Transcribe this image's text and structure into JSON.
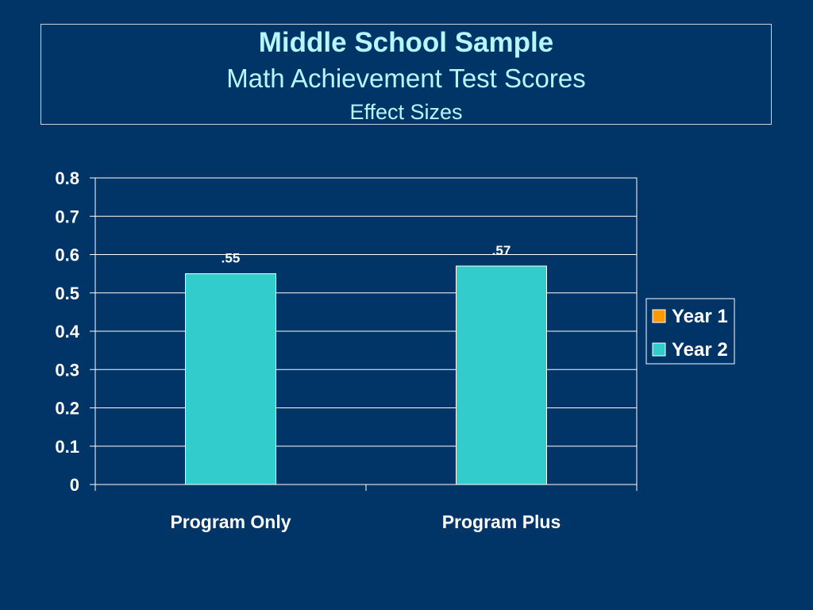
{
  "title": {
    "main": "Middle School Sample",
    "sub": "Math Achievement Test Scores",
    "sub2": "Effect Sizes"
  },
  "chart_data": {
    "type": "bar",
    "categories": [
      "Program Only",
      "Program Plus"
    ],
    "series": [
      {
        "name": "Year 1",
        "values": [
          null,
          null
        ],
        "color": "#ff9900"
      },
      {
        "name": "Year 2",
        "values": [
          0.55,
          0.57
        ],
        "color": "#33cccc"
      }
    ],
    "data_labels": [
      ".55",
      ".57"
    ],
    "yticks": [
      "0",
      "0.1",
      "0.2",
      "0.3",
      "0.4",
      "0.5",
      "0.6",
      "0.7",
      "0.8"
    ],
    "ylim": [
      0,
      0.8
    ],
    "grid": true,
    "legend_position": "right"
  }
}
